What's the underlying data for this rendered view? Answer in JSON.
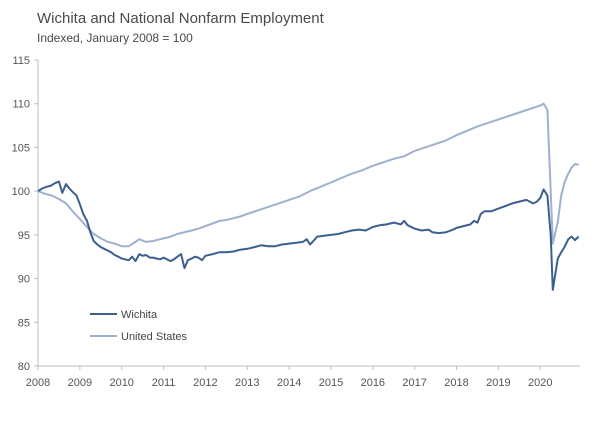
{
  "chart_data": {
    "type": "line",
    "title": "Wichita and National Nonfarm Employment",
    "subtitle": "Indexed, January 2008 = 100",
    "xlabel": "",
    "ylabel": "",
    "xlim": [
      2008,
      2020.95
    ],
    "ylim": [
      80,
      115
    ],
    "x_ticks": [
      "2008",
      "2009",
      "2010",
      "2011",
      "2012",
      "2013",
      "2014",
      "2015",
      "2016",
      "2017",
      "2018",
      "2019",
      "2020"
    ],
    "y_ticks": [
      "80",
      "85",
      "90",
      "95",
      "100",
      "105",
      "110",
      "115"
    ],
    "legend_position": "bottom-left",
    "grid": false,
    "series": [
      {
        "name": "Wichita",
        "color": "#3d5f8f",
        "points": [
          [
            2008.0,
            100.0
          ],
          [
            2008.1,
            100.3
          ],
          [
            2008.2,
            100.5
          ],
          [
            2008.3,
            100.6
          ],
          [
            2008.4,
            100.9
          ],
          [
            2008.5,
            101.1
          ],
          [
            2008.58,
            99.8
          ],
          [
            2008.67,
            100.8
          ],
          [
            2008.75,
            100.3
          ],
          [
            2008.83,
            99.9
          ],
          [
            2008.92,
            99.5
          ],
          [
            2009.0,
            98.5
          ],
          [
            2009.08,
            97.4
          ],
          [
            2009.17,
            96.6
          ],
          [
            2009.25,
            95.3
          ],
          [
            2009.33,
            94.3
          ],
          [
            2009.42,
            93.9
          ],
          [
            2009.5,
            93.6
          ],
          [
            2009.58,
            93.4
          ],
          [
            2009.67,
            93.2
          ],
          [
            2009.75,
            93.0
          ],
          [
            2009.83,
            92.7
          ],
          [
            2009.92,
            92.5
          ],
          [
            2010.0,
            92.3
          ],
          [
            2010.08,
            92.2
          ],
          [
            2010.17,
            92.1
          ],
          [
            2010.25,
            92.5
          ],
          [
            2010.33,
            92.0
          ],
          [
            2010.42,
            92.8
          ],
          [
            2010.5,
            92.6
          ],
          [
            2010.58,
            92.7
          ],
          [
            2010.67,
            92.4
          ],
          [
            2010.75,
            92.4
          ],
          [
            2010.83,
            92.3
          ],
          [
            2010.92,
            92.2
          ],
          [
            2011.0,
            92.4
          ],
          [
            2011.08,
            92.2
          ],
          [
            2011.17,
            92.0
          ],
          [
            2011.25,
            92.2
          ],
          [
            2011.33,
            92.5
          ],
          [
            2011.42,
            92.8
          ],
          [
            2011.5,
            91.2
          ],
          [
            2011.58,
            92.1
          ],
          [
            2011.67,
            92.3
          ],
          [
            2011.75,
            92.5
          ],
          [
            2011.83,
            92.4
          ],
          [
            2011.92,
            92.1
          ],
          [
            2012.0,
            92.6
          ],
          [
            2012.17,
            92.8
          ],
          [
            2012.33,
            93.0
          ],
          [
            2012.5,
            93.0
          ],
          [
            2012.67,
            93.1
          ],
          [
            2012.83,
            93.3
          ],
          [
            2013.0,
            93.4
          ],
          [
            2013.17,
            93.6
          ],
          [
            2013.33,
            93.8
          ],
          [
            2013.5,
            93.7
          ],
          [
            2013.67,
            93.7
          ],
          [
            2013.83,
            93.9
          ],
          [
            2014.0,
            94.0
          ],
          [
            2014.17,
            94.1
          ],
          [
            2014.33,
            94.2
          ],
          [
            2014.42,
            94.5
          ],
          [
            2014.5,
            93.9
          ],
          [
            2014.58,
            94.3
          ],
          [
            2014.67,
            94.8
          ],
          [
            2014.83,
            94.9
          ],
          [
            2015.0,
            95.0
          ],
          [
            2015.17,
            95.1
          ],
          [
            2015.33,
            95.3
          ],
          [
            2015.5,
            95.5
          ],
          [
            2015.67,
            95.6
          ],
          [
            2015.83,
            95.5
          ],
          [
            2016.0,
            95.9
          ],
          [
            2016.17,
            96.1
          ],
          [
            2016.33,
            96.2
          ],
          [
            2016.5,
            96.4
          ],
          [
            2016.67,
            96.2
          ],
          [
            2016.75,
            96.6
          ],
          [
            2016.83,
            96.1
          ],
          [
            2017.0,
            95.7
          ],
          [
            2017.17,
            95.5
          ],
          [
            2017.33,
            95.6
          ],
          [
            2017.42,
            95.3
          ],
          [
            2017.58,
            95.2
          ],
          [
            2017.75,
            95.3
          ],
          [
            2017.92,
            95.6
          ],
          [
            2018.0,
            95.8
          ],
          [
            2018.17,
            96.0
          ],
          [
            2018.33,
            96.2
          ],
          [
            2018.42,
            96.6
          ],
          [
            2018.5,
            96.4
          ],
          [
            2018.58,
            97.4
          ],
          [
            2018.67,
            97.7
          ],
          [
            2018.83,
            97.7
          ],
          [
            2019.0,
            98.0
          ],
          [
            2019.17,
            98.3
          ],
          [
            2019.33,
            98.6
          ],
          [
            2019.5,
            98.8
          ],
          [
            2019.67,
            99.0
          ],
          [
            2019.83,
            98.6
          ],
          [
            2019.92,
            98.8
          ],
          [
            2020.0,
            99.2
          ],
          [
            2020.08,
            100.2
          ],
          [
            2020.17,
            99.5
          ],
          [
            2020.25,
            95.0
          ],
          [
            2020.3,
            88.7
          ],
          [
            2020.42,
            92.3
          ],
          [
            2020.5,
            93.0
          ],
          [
            2020.58,
            93.6
          ],
          [
            2020.67,
            94.5
          ],
          [
            2020.75,
            94.8
          ],
          [
            2020.83,
            94.4
          ],
          [
            2020.92,
            94.8
          ]
        ]
      },
      {
        "name": "United States",
        "color": "#9fb0d0",
        "points": [
          [
            2008.0,
            100.0
          ],
          [
            2008.17,
            99.7
          ],
          [
            2008.33,
            99.5
          ],
          [
            2008.5,
            99.1
          ],
          [
            2008.67,
            98.6
          ],
          [
            2008.83,
            97.7
          ],
          [
            2009.0,
            96.8
          ],
          [
            2009.17,
            95.9
          ],
          [
            2009.33,
            95.1
          ],
          [
            2009.5,
            94.6
          ],
          [
            2009.67,
            94.2
          ],
          [
            2009.83,
            94.0
          ],
          [
            2010.0,
            93.7
          ],
          [
            2010.17,
            93.7
          ],
          [
            2010.33,
            94.2
          ],
          [
            2010.42,
            94.5
          ],
          [
            2010.58,
            94.2
          ],
          [
            2010.75,
            94.3
          ],
          [
            2010.92,
            94.5
          ],
          [
            2011.0,
            94.6
          ],
          [
            2011.17,
            94.8
          ],
          [
            2011.33,
            95.1
          ],
          [
            2011.5,
            95.3
          ],
          [
            2011.67,
            95.5
          ],
          [
            2011.83,
            95.7
          ],
          [
            2012.0,
            96.0
          ],
          [
            2012.17,
            96.3
          ],
          [
            2012.33,
            96.6
          ],
          [
            2012.5,
            96.7
          ],
          [
            2012.67,
            96.9
          ],
          [
            2012.83,
            97.1
          ],
          [
            2013.0,
            97.4
          ],
          [
            2013.25,
            97.8
          ],
          [
            2013.5,
            98.2
          ],
          [
            2013.75,
            98.6
          ],
          [
            2014.0,
            99.0
          ],
          [
            2014.25,
            99.4
          ],
          [
            2014.5,
            100.0
          ],
          [
            2014.75,
            100.5
          ],
          [
            2015.0,
            101.0
          ],
          [
            2015.25,
            101.5
          ],
          [
            2015.5,
            102.0
          ],
          [
            2015.75,
            102.4
          ],
          [
            2016.0,
            102.9
          ],
          [
            2016.25,
            103.3
          ],
          [
            2016.5,
            103.7
          ],
          [
            2016.75,
            104.0
          ],
          [
            2017.0,
            104.6
          ],
          [
            2017.25,
            105.0
          ],
          [
            2017.5,
            105.4
          ],
          [
            2017.75,
            105.8
          ],
          [
            2018.0,
            106.4
          ],
          [
            2018.25,
            106.9
          ],
          [
            2018.5,
            107.4
          ],
          [
            2018.75,
            107.8
          ],
          [
            2019.0,
            108.2
          ],
          [
            2019.25,
            108.6
          ],
          [
            2019.5,
            109.0
          ],
          [
            2019.75,
            109.4
          ],
          [
            2020.0,
            109.8
          ],
          [
            2020.08,
            110.0
          ],
          [
            2020.17,
            109.3
          ],
          [
            2020.25,
            100.0
          ],
          [
            2020.3,
            94.0
          ],
          [
            2020.42,
            96.5
          ],
          [
            2020.5,
            99.5
          ],
          [
            2020.58,
            101.0
          ],
          [
            2020.67,
            102.0
          ],
          [
            2020.75,
            102.7
          ],
          [
            2020.83,
            103.1
          ],
          [
            2020.92,
            103.0
          ]
        ]
      }
    ]
  }
}
